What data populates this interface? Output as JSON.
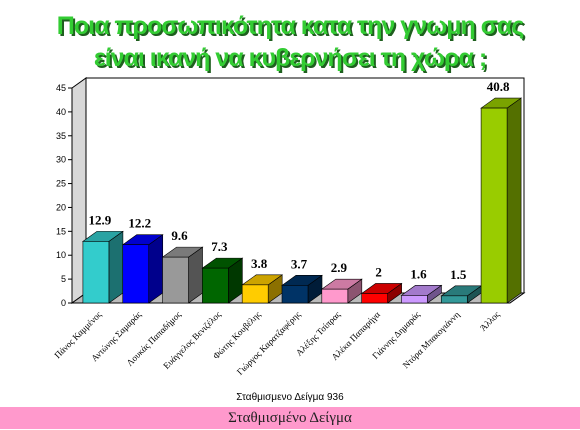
{
  "chart_data": {
    "type": "bar3d",
    "title": [
      "Ποια προσωπικότητα κατα την γνωμη σας",
      "είναι ικανή να κυβερνήσει τη χώρα ;"
    ],
    "categories": [
      "Πάνος Καμμένος",
      "Αντώνης Σαμαράς",
      "Λουκάς Παπαδήμος",
      "Ευάγγελος Βενιζέλος",
      "Φώτης Κουβέλης",
      "Γιώργος Καρατζαφέρης",
      "Αλέξης Τσίπρας",
      "Αλέκα Παπαρήγα",
      "Γιάννης Δημαράς",
      "Ντόρα Μπακογιάννη",
      "Άλλος"
    ],
    "values": [
      12.9,
      12.2,
      9.6,
      7.3,
      3.8,
      3.7,
      2.9,
      2,
      1.6,
      1.5,
      40.8
    ],
    "colors": [
      "#33cccc",
      "#0000ff",
      "#999999",
      "#006600",
      "#ffcc00",
      "#003366",
      "#ff99cc",
      "#ff0000",
      "#cc99ff",
      "#339999",
      "#99cc00"
    ],
    "ylim": [
      0,
      45
    ],
    "yticks": [
      0,
      5,
      10,
      15,
      20,
      25,
      30,
      35,
      40,
      45
    ],
    "note": "Σταθμισμενο Δείγμα 936"
  },
  "footer": {
    "band": "Σταθμισμένο Δείγμα"
  }
}
